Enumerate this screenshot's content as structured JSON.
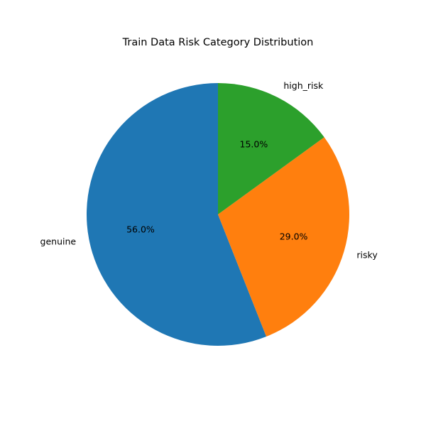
{
  "chart_data": {
    "type": "pie",
    "title": "Train Data Risk Category Distribution",
    "categories": [
      "genuine",
      "risky",
      "high_risk"
    ],
    "values": [
      56.0,
      29.0,
      15.0
    ],
    "value_labels": [
      "56.0%",
      "29.0%",
      "15.0%"
    ],
    "colors": [
      "#1f77b4",
      "#ff7f0e",
      "#2ca02c"
    ],
    "start_angle_deg": 90,
    "direction": "counterclockwise",
    "legend": "none"
  }
}
